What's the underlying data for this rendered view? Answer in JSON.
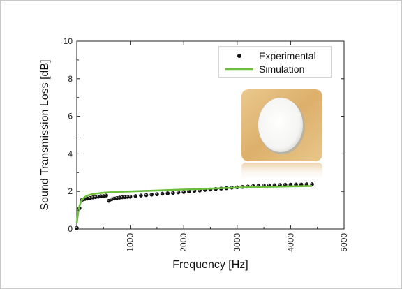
{
  "chart_data": {
    "type": "scatter",
    "xlabel": "Frequency [Hz]",
    "ylabel": "Sound Transmission Loss [dB]",
    "xlim": [
      0,
      5000
    ],
    "ylim": [
      0,
      10
    ],
    "x_ticks": [
      1000,
      2000,
      3000,
      4000,
      5000
    ],
    "y_ticks": [
      0,
      2,
      4,
      6,
      8,
      10
    ],
    "x_tick_orientation": "vertical",
    "grid": false,
    "legend_position": "top-right",
    "inset": "photo of a round white sample disc on a tan background",
    "series": [
      {
        "name": "Experimental",
        "kind": "markers",
        "color": "#111111",
        "x": [
          0,
          50,
          100,
          150,
          200,
          250,
          300,
          350,
          400,
          450,
          500,
          550,
          600,
          650,
          700,
          750,
          800,
          850,
          900,
          950,
          1000,
          1100,
          1200,
          1300,
          1400,
          1500,
          1600,
          1700,
          1800,
          1900,
          2000,
          2100,
          2200,
          2300,
          2400,
          2500,
          2600,
          2700,
          2800,
          2900,
          3000,
          3100,
          3200,
          3300,
          3400,
          3500,
          3600,
          3700,
          3800,
          3900,
          4000,
          4100,
          4200,
          4300,
          4400
        ],
        "y": [
          0.05,
          1.1,
          1.55,
          1.6,
          1.62,
          1.65,
          1.68,
          1.7,
          1.72,
          1.74,
          1.75,
          1.78,
          1.5,
          1.58,
          1.62,
          1.65,
          1.67,
          1.69,
          1.7,
          1.71,
          1.72,
          1.75,
          1.78,
          1.8,
          1.83,
          1.85,
          1.88,
          1.9,
          1.92,
          1.95,
          1.97,
          2.0,
          2.03,
          2.05,
          2.08,
          2.1,
          2.13,
          2.15,
          2.17,
          2.2,
          2.22,
          2.24,
          2.26,
          2.28,
          2.3,
          2.31,
          2.32,
          2.33,
          2.34,
          2.35,
          2.36,
          2.37,
          2.37,
          2.38,
          2.38
        ]
      },
      {
        "name": "Simulation",
        "kind": "line",
        "color": "#6cbf3c",
        "x": [
          0,
          25,
          50,
          75,
          100,
          150,
          200,
          300,
          400,
          500,
          600,
          800,
          1000,
          1500,
          2000,
          2500,
          3000,
          3500,
          4000,
          4400
        ],
        "y": [
          0.3,
          0.85,
          1.2,
          1.42,
          1.55,
          1.7,
          1.78,
          1.86,
          1.9,
          1.93,
          1.95,
          1.98,
          2.0,
          2.05,
          2.1,
          2.15,
          2.2,
          2.24,
          2.27,
          2.29
        ]
      }
    ]
  }
}
